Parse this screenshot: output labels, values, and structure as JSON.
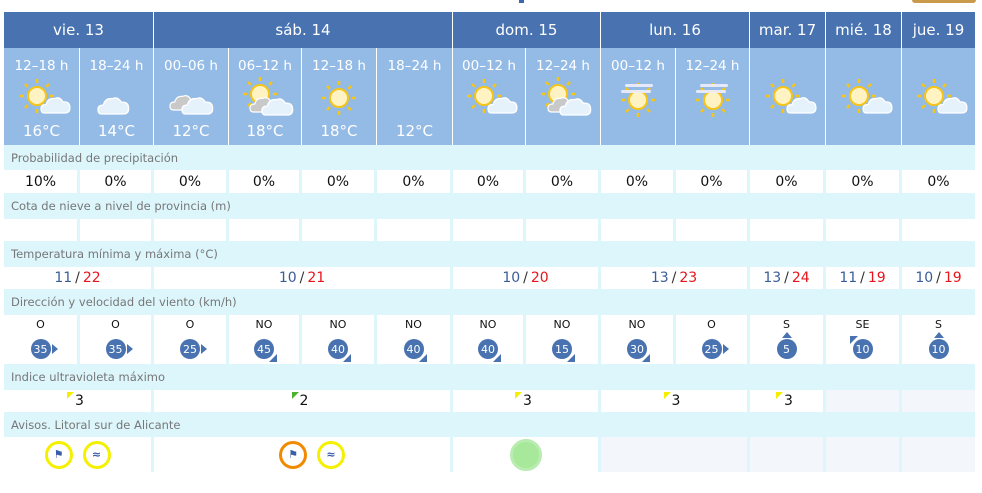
{
  "days": [
    {
      "label": "vie. 13",
      "span": 2
    },
    {
      "label": "sáb. 14",
      "span": 4
    },
    {
      "label": "dom. 15",
      "span": 2
    },
    {
      "label": "lun. 16",
      "span": 2
    },
    {
      "label": "mar. 17",
      "span": 1
    },
    {
      "label": "mié. 18",
      "span": 1
    },
    {
      "label": "jue. 19",
      "span": 1
    }
  ],
  "periods": [
    {
      "time": "12–18 h",
      "icon": "sun-cloud",
      "temp": "16°C"
    },
    {
      "time": "18–24 h",
      "icon": "moon-cloud",
      "temp": "14°C"
    },
    {
      "time": "00–06 h",
      "icon": "moon-cloud-gray",
      "temp": "12°C"
    },
    {
      "time": "06–12 h",
      "icon": "sun-cloud-gray",
      "temp": "18°C"
    },
    {
      "time": "12–18 h",
      "icon": "sun",
      "temp": "18°C"
    },
    {
      "time": "18–24 h",
      "icon": "moon",
      "temp": "12°C"
    },
    {
      "time": "00–12 h",
      "icon": "sun-cloud",
      "temp": ""
    },
    {
      "time": "12–24 h",
      "icon": "sun-cloud-gray",
      "temp": ""
    },
    {
      "time": "00–12 h",
      "icon": "sun-haze",
      "temp": ""
    },
    {
      "time": "12–24 h",
      "icon": "sun-haze",
      "temp": ""
    },
    {
      "time": "",
      "icon": "sun-cloud",
      "temp": ""
    },
    {
      "time": "",
      "icon": "sun-cloud",
      "temp": ""
    },
    {
      "time": "",
      "icon": "sun-cloud",
      "temp": ""
    }
  ],
  "labels": {
    "precip": "Probabilidad de precipitación",
    "snow": "Cota de nieve a nivel de provincia (m)",
    "temp": "Temperatura mínima y máxima (°C)",
    "wind": "Dirección y velocidad del viento (km/h)",
    "uv": "Indice ultravioleta máximo",
    "warnings": "Avisos. Litoral sur de Alicante"
  },
  "precip": [
    "10%",
    "0%",
    "0%",
    "0%",
    "0%",
    "0%",
    "0%",
    "0%",
    "0%",
    "0%",
    "0%",
    "0%",
    "0%"
  ],
  "snow": [
    "",
    "",
    "",
    "",
    "",
    "",
    "",
    "",
    "",
    "",
    "",
    "",
    ""
  ],
  "temps": [
    {
      "min": "11",
      "sep": "/",
      "max": "22"
    },
    {
      "min": "10",
      "sep": "/",
      "max": "21"
    },
    {
      "min": "10",
      "sep": "/",
      "max": "20"
    },
    {
      "min": "13",
      "sep": "/",
      "max": "23"
    },
    {
      "min": "13",
      "sep": "/",
      "max": "24"
    },
    {
      "min": "11",
      "sep": "/",
      "max": "19"
    },
    {
      "min": "10",
      "sep": "/",
      "max": "19"
    }
  ],
  "wind": [
    {
      "dir": "O",
      "speed": "35"
    },
    {
      "dir": "O",
      "speed": "35"
    },
    {
      "dir": "O",
      "speed": "25"
    },
    {
      "dir": "NO",
      "speed": "45"
    },
    {
      "dir": "NO",
      "speed": "40"
    },
    {
      "dir": "NO",
      "speed": "40"
    },
    {
      "dir": "NO",
      "speed": "40"
    },
    {
      "dir": "NO",
      "speed": "15"
    },
    {
      "dir": "NO",
      "speed": "30"
    },
    {
      "dir": "O",
      "speed": "25"
    },
    {
      "dir": "S",
      "speed": "5"
    },
    {
      "dir": "SE",
      "speed": "10"
    },
    {
      "dir": "S",
      "speed": "10"
    }
  ],
  "uv": [
    {
      "value": "3",
      "color": "#f5ee00"
    },
    {
      "value": "2",
      "color": "#4cb030"
    },
    {
      "value": "3",
      "color": "#f5ee00"
    },
    {
      "value": "3",
      "color": "#f5ee00"
    },
    {
      "value": "3",
      "color": "#f5ee00"
    },
    {
      "value": "",
      "color": ""
    },
    {
      "value": "",
      "color": ""
    }
  ],
  "warnings": [
    [
      {
        "type": "wind-icon",
        "level": "yellow",
        "color": "#f5f000"
      },
      {
        "type": "waves-icon",
        "level": "yellow",
        "color": "#f5f000"
      }
    ],
    [
      {
        "type": "wind-icon",
        "level": "orange",
        "color": "#f28a00"
      },
      {
        "type": "waves-icon",
        "level": "yellow",
        "color": "#f5f000"
      }
    ],
    [
      {
        "type": "no-warning-icon",
        "level": "green",
        "color": "#a8e89a"
      }
    ],
    [],
    [],
    [],
    []
  ]
}
